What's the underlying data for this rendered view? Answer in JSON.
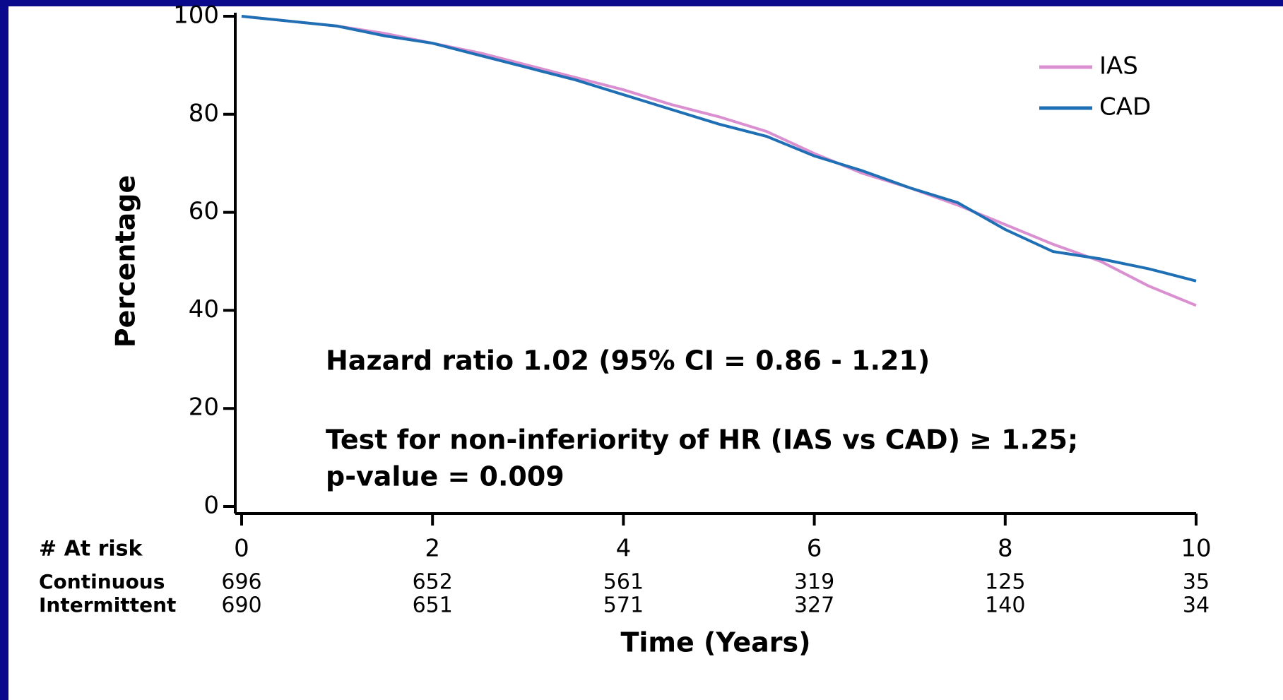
{
  "chart_data": {
    "type": "line",
    "x_label": "Time (Years)",
    "y_label": "Percentage",
    "x": [
      0,
      0.5,
      1,
      1.5,
      2,
      2.5,
      3,
      3.5,
      4,
      4.5,
      5,
      5.5,
      6,
      6.5,
      7,
      7.5,
      8,
      8.5,
      9,
      9.5,
      10
    ],
    "series": [
      {
        "name": "IAS",
        "color": "#d98fd0",
        "values": [
          100,
          99,
          98,
          96.5,
          94.5,
          92.5,
          90,
          87.5,
          85,
          82,
          79.5,
          76.5,
          72,
          68,
          65,
          61.5,
          57.5,
          53.5,
          50,
          45,
          41
        ]
      },
      {
        "name": "CAD",
        "color": "#1f6fb5",
        "values": [
          100,
          99,
          98,
          96,
          94.5,
          92,
          89.5,
          87,
          84,
          81,
          78,
          75.5,
          71.5,
          68.5,
          65,
          62,
          56.5,
          52,
          50.5,
          48.5,
          46
        ]
      }
    ],
    "xlim": [
      0,
      10
    ],
    "xticks": [
      0,
      2,
      4,
      6,
      8,
      10
    ],
    "ylim": [
      0,
      100
    ],
    "yticks": [
      0,
      20,
      40,
      60,
      80,
      100
    ],
    "legend": "upper right",
    "annotations": [
      "Hazard ratio 1.02 (95% CI = 0.86 - 1.21)",
      "Test for non-inferiority of  HR (IAS vs CAD) ≥ 1.25;",
      "p-value = 0.009"
    ],
    "risk_table": {
      "title": "# At risk",
      "rows": [
        {
          "name": "Continuous",
          "values": [
            696,
            652,
            561,
            319,
            125,
            35
          ]
        },
        {
          "name": "Intermittent",
          "values": [
            690,
            651,
            571,
            327,
            140,
            34
          ]
        }
      ]
    }
  }
}
